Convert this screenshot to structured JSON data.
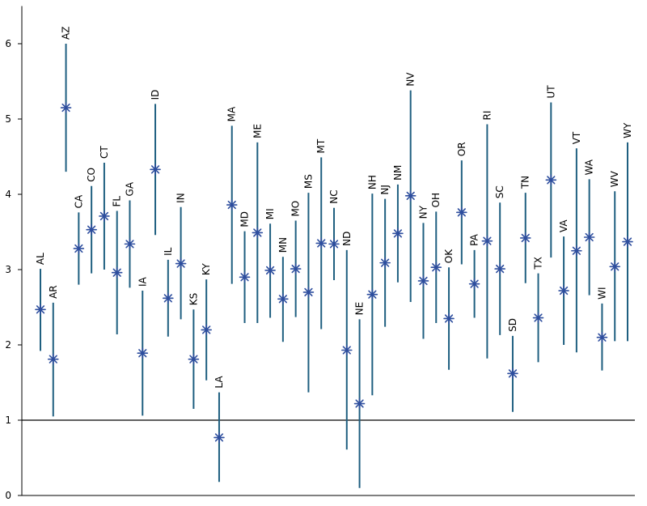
{
  "chart_data": {
    "type": "scatter",
    "title": "",
    "xlabel": "",
    "ylabel": "",
    "ylim": [
      0,
      6.5
    ],
    "yticks": [
      0,
      1,
      2,
      3,
      4,
      5,
      6
    ],
    "reference_line": 1,
    "grid": false,
    "colors": {
      "interval": "#1f5f80",
      "point": "#2e4e9e",
      "axis": "#000000"
    },
    "points": [
      {
        "label": "AL",
        "value": 2.47,
        "low": 1.92,
        "high": 3.01
      },
      {
        "label": "AR",
        "value": 1.81,
        "low": 1.05,
        "high": 2.56
      },
      {
        "label": "AZ",
        "value": 5.15,
        "low": 4.3,
        "high": 6.0
      },
      {
        "label": "CA",
        "value": 3.28,
        "low": 2.8,
        "high": 3.76
      },
      {
        "label": "CO",
        "value": 3.53,
        "low": 2.95,
        "high": 4.11
      },
      {
        "label": "CT",
        "value": 3.71,
        "low": 3.0,
        "high": 4.42
      },
      {
        "label": "FL",
        "value": 2.96,
        "low": 2.14,
        "high": 3.78
      },
      {
        "label": "GA",
        "value": 3.34,
        "low": 2.76,
        "high": 3.92
      },
      {
        "label": "IA",
        "value": 1.89,
        "low": 1.06,
        "high": 2.72
      },
      {
        "label": "ID",
        "value": 4.33,
        "low": 3.46,
        "high": 5.2
      },
      {
        "label": "IL",
        "value": 2.62,
        "low": 2.11,
        "high": 3.13
      },
      {
        "label": "IN",
        "value": 3.08,
        "low": 2.34,
        "high": 3.83
      },
      {
        "label": "KS",
        "value": 1.81,
        "low": 1.15,
        "high": 2.47
      },
      {
        "label": "KY",
        "value": 2.2,
        "low": 1.53,
        "high": 2.87
      },
      {
        "label": "LA",
        "value": 0.77,
        "low": 0.18,
        "high": 1.37
      },
      {
        "label": "MA",
        "value": 3.86,
        "low": 2.81,
        "high": 4.91
      },
      {
        "label": "MD",
        "value": 2.9,
        "low": 2.29,
        "high": 3.51
      },
      {
        "label": "ME",
        "value": 3.49,
        "low": 2.29,
        "high": 4.69
      },
      {
        "label": "MI",
        "value": 2.99,
        "low": 2.36,
        "high": 3.61
      },
      {
        "label": "MN",
        "value": 2.61,
        "low": 2.04,
        "high": 3.17
      },
      {
        "label": "MO",
        "value": 3.01,
        "low": 2.37,
        "high": 3.65
      },
      {
        "label": "MS",
        "value": 2.7,
        "low": 1.37,
        "high": 4.02
      },
      {
        "label": "MT",
        "value": 3.35,
        "low": 2.21,
        "high": 4.49
      },
      {
        "label": "NC",
        "value": 3.34,
        "low": 2.86,
        "high": 3.82
      },
      {
        "label": "ND",
        "value": 1.93,
        "low": 0.61,
        "high": 3.26
      },
      {
        "label": "NE",
        "value": 1.22,
        "low": 0.1,
        "high": 2.34
      },
      {
        "label": "NH",
        "value": 2.67,
        "low": 1.33,
        "high": 4.01
      },
      {
        "label": "NJ",
        "value": 3.09,
        "low": 2.24,
        "high": 3.94
      },
      {
        "label": "NM",
        "value": 3.48,
        "low": 2.83,
        "high": 4.13
      },
      {
        "label": "NV",
        "value": 3.98,
        "low": 2.57,
        "high": 5.38
      },
      {
        "label": "NY",
        "value": 2.85,
        "low": 2.08,
        "high": 3.62
      },
      {
        "label": "OH",
        "value": 3.03,
        "low": 2.29,
        "high": 3.77
      },
      {
        "label": "OK",
        "value": 2.35,
        "low": 1.67,
        "high": 3.03
      },
      {
        "label": "OR",
        "value": 3.76,
        "low": 3.07,
        "high": 4.45
      },
      {
        "label": "PA",
        "value": 2.81,
        "low": 2.36,
        "high": 3.26
      },
      {
        "label": "RI",
        "value": 3.38,
        "low": 1.82,
        "high": 4.93
      },
      {
        "label": "SC",
        "value": 3.01,
        "low": 2.13,
        "high": 3.89
      },
      {
        "label": "SD",
        "value": 1.62,
        "low": 1.11,
        "high": 2.12
      },
      {
        "label": "TN",
        "value": 3.42,
        "low": 2.82,
        "high": 4.02
      },
      {
        "label": "TX",
        "value": 2.36,
        "low": 1.77,
        "high": 2.95
      },
      {
        "label": "UT",
        "value": 4.19,
        "low": 3.16,
        "high": 5.22
      },
      {
        "label": "VA",
        "value": 2.72,
        "low": 2.0,
        "high": 3.44
      },
      {
        "label": "VT",
        "value": 3.25,
        "low": 1.9,
        "high": 4.61
      },
      {
        "label": "WA",
        "value": 3.43,
        "low": 2.66,
        "high": 4.2
      },
      {
        "label": "WI",
        "value": 2.1,
        "low": 1.66,
        "high": 2.55
      },
      {
        "label": "WV",
        "value": 3.04,
        "low": 2.05,
        "high": 4.04
      },
      {
        "label": "WY",
        "value": 3.37,
        "low": 2.05,
        "high": 4.69
      }
    ]
  }
}
